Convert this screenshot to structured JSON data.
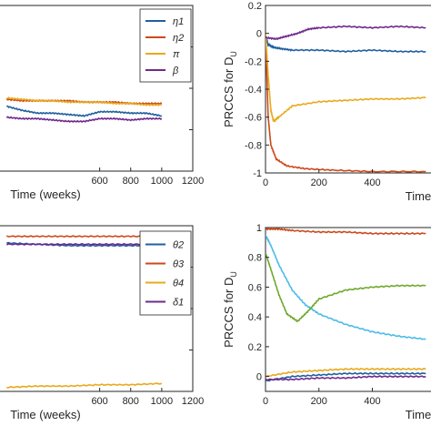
{
  "colors": {
    "blue": "#1f5fa0",
    "orange": "#cc4a1a",
    "yellow": "#e8a91c",
    "purple": "#6e2a8c",
    "cyan": "#4cbce8",
    "green": "#6fa82c"
  },
  "chart_data": [
    {
      "id": "top-left",
      "type": "line",
      "xlabel": "Time (weeks)",
      "ylabel": "",
      "title": "",
      "x_ticks": [
        600,
        800,
        1000,
        1200
      ],
      "ylim": [
        -1,
        0.2
      ],
      "xlim": [
        0,
        1200
      ],
      "grid": false,
      "legend_position": "top-right",
      "series": [
        {
          "name": "η1",
          "color_key": "blue",
          "x": [
            0,
            100,
            200,
            300,
            400,
            500,
            600,
            700,
            800,
            900,
            1000
          ],
          "values": [
            -0.53,
            -0.56,
            -0.58,
            -0.58,
            -0.59,
            -0.6,
            -0.57,
            -0.57,
            -0.58,
            -0.58,
            -0.6
          ]
        },
        {
          "name": "η2",
          "color_key": "orange",
          "x": [
            0,
            100,
            200,
            300,
            400,
            500,
            600,
            700,
            800,
            900,
            1000
          ],
          "values": [
            -0.48,
            -0.49,
            -0.49,
            -0.49,
            -0.49,
            -0.5,
            -0.5,
            -0.5,
            -0.51,
            -0.51,
            -0.51
          ]
        },
        {
          "name": "π",
          "color_key": "yellow",
          "x": [
            0,
            100,
            200,
            300,
            400,
            500,
            600,
            700,
            800,
            900,
            1000
          ],
          "values": [
            -0.47,
            -0.48,
            -0.49,
            -0.49,
            -0.5,
            -0.5,
            -0.5,
            -0.51,
            -0.51,
            -0.52,
            -0.52
          ]
        },
        {
          "name": "β",
          "color_key": "purple",
          "x": [
            0,
            100,
            200,
            300,
            400,
            500,
            600,
            700,
            800,
            900,
            1000
          ],
          "values": [
            -0.61,
            -0.62,
            -0.62,
            -0.63,
            -0.64,
            -0.64,
            -0.62,
            -0.62,
            -0.63,
            -0.62,
            -0.62
          ]
        }
      ]
    },
    {
      "id": "top-right",
      "type": "line",
      "xlabel": "Time",
      "ylabel": "PRCCS for D",
      "ylabel_sub": "U",
      "title": "",
      "x_ticks": [
        0,
        200,
        400
      ],
      "y_ticks": [
        0.2,
        0,
        -0.2,
        -0.4,
        -0.6,
        -0.8,
        -1
      ],
      "xlim": [
        0,
        640
      ],
      "ylim": [
        -1,
        0.2
      ],
      "grid": false,
      "series": [
        {
          "name": "",
          "color_key": "blue",
          "x": [
            0,
            10,
            30,
            60,
            100,
            200,
            300,
            400,
            500,
            600
          ],
          "values": [
            -0.02,
            -0.08,
            -0.1,
            -0.11,
            -0.12,
            -0.12,
            -0.13,
            -0.12,
            -0.13,
            -0.13
          ]
        },
        {
          "name": "",
          "color_key": "orange",
          "x": [
            0,
            5,
            10,
            20,
            40,
            80,
            150,
            250,
            400,
            600
          ],
          "values": [
            0.0,
            -0.3,
            -0.6,
            -0.8,
            -0.9,
            -0.95,
            -0.97,
            -0.98,
            -0.99,
            -0.99
          ]
        },
        {
          "name": "",
          "color_key": "yellow",
          "x": [
            0,
            10,
            20,
            30,
            50,
            100,
            200,
            300,
            400,
            500,
            600
          ],
          "values": [
            0.0,
            -0.3,
            -0.55,
            -0.63,
            -0.6,
            -0.52,
            -0.49,
            -0.48,
            -0.47,
            -0.47,
            -0.46
          ]
        },
        {
          "name": "",
          "color_key": "purple",
          "x": [
            0,
            40,
            80,
            120,
            160,
            200,
            300,
            400,
            500,
            600
          ],
          "values": [
            -0.03,
            -0.04,
            -0.02,
            0.0,
            0.03,
            0.04,
            0.05,
            0.04,
            0.05,
            0.04
          ]
        }
      ]
    },
    {
      "id": "bottom-left",
      "type": "line",
      "xlabel": "Time (weeks)",
      "ylabel": "",
      "title": "",
      "x_ticks": [
        600,
        800,
        1000,
        1200
      ],
      "xlim": [
        0,
        1200
      ],
      "ylim": [
        -0.2,
        1.05
      ],
      "grid": false,
      "legend_position": "top-right",
      "series": [
        {
          "name": "θ2",
          "color_key": "blue",
          "x": [
            0,
            200,
            400,
            600,
            800,
            1000
          ],
          "values": [
            0.92,
            0.91,
            0.9,
            0.9,
            0.9,
            0.9
          ]
        },
        {
          "name": "θ3",
          "color_key": "orange",
          "x": [
            0,
            200,
            400,
            600,
            800,
            1000
          ],
          "values": [
            0.97,
            0.97,
            0.97,
            0.97,
            0.97,
            0.97
          ]
        },
        {
          "name": "θ4",
          "color_key": "yellow",
          "x": [
            0,
            200,
            400,
            600,
            800,
            1000
          ],
          "values": [
            -0.17,
            -0.16,
            -0.16,
            -0.15,
            -0.15,
            -0.14
          ]
        },
        {
          "name": "δ1",
          "color_key": "purple",
          "x": [
            0,
            200,
            400,
            600,
            800,
            1000
          ],
          "values": [
            0.91,
            0.91,
            0.91,
            0.91,
            0.91,
            0.91
          ]
        }
      ]
    },
    {
      "id": "bottom-right",
      "type": "line",
      "xlabel": "Time",
      "ylabel": "PRCCS for D",
      "ylabel_sub": "U",
      "title": "",
      "x_ticks": [
        0,
        200,
        400
      ],
      "y_ticks": [
        1,
        0.8,
        0.6,
        0.4,
        0.2,
        0
      ],
      "xlim": [
        0,
        640
      ],
      "ylim": [
        -0.1,
        1.0
      ],
      "grid": false,
      "series": [
        {
          "name": "",
          "color_key": "orange",
          "x": [
            0,
            50,
            100,
            200,
            300,
            400,
            500,
            600
          ],
          "values": [
            0.99,
            0.99,
            0.98,
            0.97,
            0.97,
            0.96,
            0.96,
            0.96
          ]
        },
        {
          "name": "",
          "color_key": "cyan",
          "x": [
            0,
            20,
            50,
            100,
            150,
            200,
            300,
            400,
            500,
            600
          ],
          "values": [
            0.95,
            0.88,
            0.75,
            0.58,
            0.48,
            0.42,
            0.35,
            0.3,
            0.27,
            0.25
          ]
        },
        {
          "name": "",
          "color_key": "green",
          "x": [
            0,
            20,
            50,
            80,
            120,
            160,
            200,
            300,
            400,
            500,
            600
          ],
          "values": [
            0.83,
            0.72,
            0.55,
            0.42,
            0.37,
            0.44,
            0.52,
            0.58,
            0.6,
            0.61,
            0.61
          ]
        },
        {
          "name": "",
          "color_key": "yellow",
          "x": [
            0,
            100,
            200,
            300,
            400,
            500,
            600
          ],
          "values": [
            0.0,
            0.03,
            0.04,
            0.05,
            0.05,
            0.05,
            0.05
          ]
        },
        {
          "name": "",
          "color_key": "blue",
          "x": [
            0,
            100,
            200,
            300,
            400,
            500,
            600
          ],
          "values": [
            -0.03,
            0.0,
            0.01,
            0.02,
            0.02,
            0.02,
            0.02
          ]
        },
        {
          "name": "",
          "color_key": "purple",
          "x": [
            0,
            100,
            200,
            300,
            400,
            500,
            600
          ],
          "values": [
            -0.02,
            -0.02,
            -0.01,
            -0.01,
            0.0,
            0.0,
            0.0
          ]
        }
      ]
    }
  ]
}
